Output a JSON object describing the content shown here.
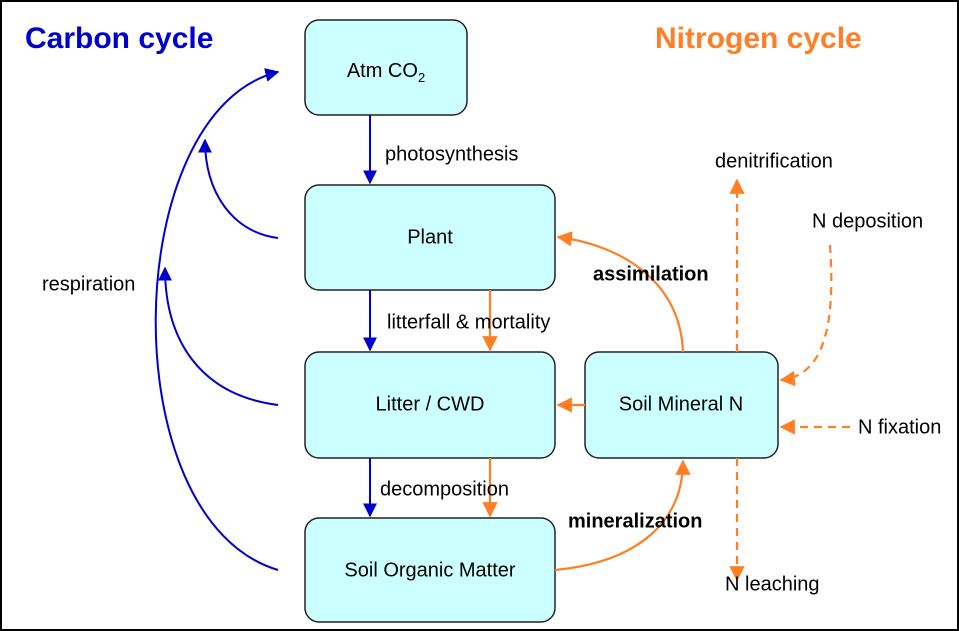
{
  "header": {
    "carbon_title": "Carbon cycle",
    "nitrogen_title": "Nitrogen cycle"
  },
  "nodes": [
    {
      "label": "Atm CO",
      "label_sub": "2"
    },
    {
      "label": "Plant"
    },
    {
      "label": "Litter / CWD"
    },
    {
      "label": "Soil Organic Matter"
    },
    {
      "label": "Soil Mineral N"
    }
  ],
  "edges": {
    "photosynthesis": "photosynthesis",
    "litterfall": "litterfall & mortality",
    "decomposition": "decomposition",
    "respiration": "respiration",
    "assimilation": "assimilation",
    "mineralization": "mineralization",
    "denitrification": "denitrification",
    "deposition": "N deposition",
    "fixation": "N fixation",
    "leaching": "N leaching"
  }
}
